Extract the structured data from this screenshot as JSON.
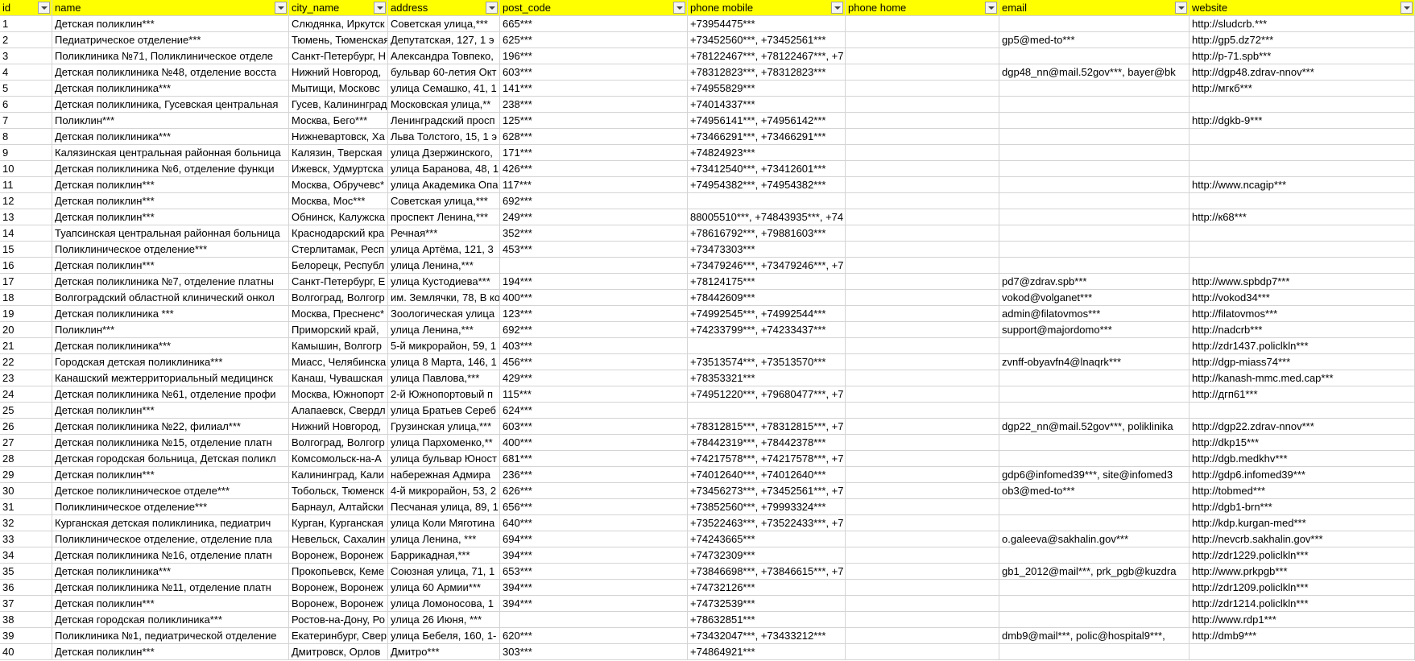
{
  "table": {
    "columns": [
      "id",
      "name",
      "city_name",
      "address",
      "post_code",
      "phone mobile",
      "phone home",
      "email",
      "website"
    ],
    "rows": [
      [
        1,
        "Детская поликлин***",
        "Слюдянка, Иркутск",
        "Советская улица,***",
        "665***",
        "+73954475***",
        null,
        null,
        "http://sludcrb.***"
      ],
      [
        2,
        "Педиатрическое отделение***",
        "Тюмень, Тюменская",
        "Депутатская, 127, 1 э",
        "625***",
        "+73452560***, +73452561***",
        null,
        "gp5@med-to***",
        "http://gp5.dz72***"
      ],
      [
        3,
        "Поликлиника №71, Поликлиническое отделе",
        "Санкт-Петербург, Н",
        "Александра Товпеко,",
        "196***",
        "+78122467***, +78122467***, +7",
        null,
        null,
        "http://p-71.spb***"
      ],
      [
        4,
        "Детская поликлиника №48, отделение восста",
        "Нижний Новгород,",
        "бульвар 60-летия Окт",
        "603***",
        "+78312823***, +78312823***",
        null,
        "dgp48_nn@mail.52gov***, bayer@bk",
        "http://dgp48.zdrav-nnov***"
      ],
      [
        5,
        "Детская поликлиника***",
        "Мытищи, Московс",
        "улица Семашко, 41, 1",
        "141***",
        "+74955829***",
        null,
        null,
        "http://мгкб***"
      ],
      [
        6,
        "Детская поликлиника, Гусевская центральная",
        "Гусев, Калининград",
        "Московская улица,**",
        "238***",
        "+74014337***",
        null,
        null,
        null
      ],
      [
        7,
        "Поликлин***",
        "Москва, Бего***",
        "Ленинградский просп",
        "125***",
        "+74956141***, +74956142***",
        null,
        null,
        "http://dgkb-9***"
      ],
      [
        8,
        "Детская поликлиника***",
        "Нижневартовск, Ха",
        "Льва Толстого, 15, 1 э",
        "628***",
        "+73466291***, +73466291***",
        null,
        null,
        null
      ],
      [
        9,
        "Калязинская центральная районная больница",
        "Калязин, Тверская",
        "улица Дзержинского,",
        "171***",
        "+74824923***",
        null,
        null,
        null
      ],
      [
        10,
        "Детская поликлиника №6, отделение функци",
        "Ижевск, Удмуртска",
        "улица Баранова, 48, 1",
        "426***",
        "+73412540***, +73412601***",
        null,
        null,
        null
      ],
      [
        11,
        "Детская поликлин***",
        "Москва, Обручевс*",
        "улица Академика Опа",
        "117***",
        "+74954382***, +74954382***",
        null,
        null,
        "http://www.ncagip***"
      ],
      [
        12,
        "Детская поликлин***",
        "Москва, Мос***",
        "Советская улица,***",
        "692***",
        null,
        null,
        null,
        null
      ],
      [
        13,
        "Детская поликлин***",
        "Обнинск, Калужска",
        "проспект Ленина,***",
        "249***",
        "88005510***, +74843935***, +74",
        null,
        null,
        "http://к68***"
      ],
      [
        14,
        "Туапсинская центральная районная больница",
        "Краснодарский кра",
        "Речная***",
        "352***",
        "+78616792***, +79881603***",
        null,
        null,
        null
      ],
      [
        15,
        "Поликлиническое отделение***",
        "Стерлитамак, Респ",
        "улица Артёма, 121, 3",
        "453***",
        "+73473303***",
        null,
        null,
        null
      ],
      [
        16,
        "Детская поликлин***",
        "Белорецк, Республ",
        "улица Ленина,***",
        null,
        "+73479246***, +73479246***, +7",
        null,
        null,
        null
      ],
      [
        17,
        "Детская поликлиника №7, отделение платны",
        "Санкт-Петербург, Е",
        "улица Кустодиева***",
        "194***",
        "+78124175***",
        null,
        "pd7@zdrav.spb***",
        "http://www.spbdp7***"
      ],
      [
        18,
        "Волгоградский областной клинический онкол",
        "Волгоград, Волгогр",
        "им. Землячки, 78, В ко",
        "400***",
        "+78442609***",
        null,
        "vokod@volganet***",
        "http://vokod34***"
      ],
      [
        19,
        "Детская поликлиника ***",
        "Москва, Пресненс*",
        "Зоологическая улица",
        "123***",
        "+74992545***, +74992544***",
        null,
        "admin@filatovmos***",
        "http://filatovmos***"
      ],
      [
        20,
        "Поликлин***",
        "Приморский край,",
        "улица Ленина,***",
        "692***",
        "+74233799***, +74233437***",
        null,
        "support@majordomo***",
        "http://nadcrb***"
      ],
      [
        21,
        "Детская поликлиника***",
        "Камышин, Волгогр",
        "5-й микрорайон, 59, 1",
        "403***",
        null,
        null,
        null,
        "http://zdr1437.policlkln***"
      ],
      [
        22,
        "Городская детская поликлиника***",
        "Миасс, Челябинска",
        "улица 8 Марта, 146, 1",
        "456***",
        "+73513574***, +73513570***",
        null,
        "zvnff-obyavfn4@lnaqrk***",
        "http://dgp-miass74***"
      ],
      [
        23,
        "Канашский межтерриториальный медицинск",
        "Канаш, Чувашская",
        "улица Павлова,***",
        "429***",
        "+78353321***",
        null,
        null,
        "http://kanash-mmc.med.cap***"
      ],
      [
        24,
        "Детская поликлиника №61, отделение профи",
        "Москва, Южнопорт",
        "2-й Южнопортовый п",
        "115***",
        "+74951220***, +79680477***, +7",
        null,
        null,
        "http://дгп61***"
      ],
      [
        25,
        "Детская поликлин***",
        "Алапаевск, Свердл",
        "улица Братьев Сереб",
        "624***",
        null,
        null,
        null,
        null
      ],
      [
        26,
        "Детская поликлиника №22, филиал***",
        "Нижний Новгород,",
        "Грузинская улица,***",
        "603***",
        "+78312815***, +78312815***, +7",
        null,
        "dgp22_nn@mail.52gov***, poliklinika",
        "http://dgp22.zdrav-nnov***"
      ],
      [
        27,
        "Детская поликлиника №15, отделение платн",
        "Волгоград, Волгогр",
        "улица Пархоменко,**",
        "400***",
        "+78442319***, +78442378***",
        null,
        null,
        "http://dkp15***"
      ],
      [
        28,
        "Детская городская больница, Детская поликл",
        "Комсомольск-на-А",
        "улица бульвар Юност",
        "681***",
        "+74217578***, +74217578***, +7",
        null,
        null,
        "http://dgb.medkhv***"
      ],
      [
        29,
        "Детская поликлин***",
        "Калининград, Кали",
        "набережная Адмира",
        "236***",
        "+74012640***, +74012640***",
        null,
        "gdp6@infomed39***, site@infomed3",
        "http://gdp6.infomed39***"
      ],
      [
        30,
        "Детское поликлиническое отделе***",
        "Тобольск, Тюменск",
        "4-й микрорайон, 53, 2",
        "626***",
        "+73456273***, +73452561***, +7",
        null,
        "ob3@med-to***",
        "http://tobmed***"
      ],
      [
        31,
        "Поликлиническое отделение***",
        "Барнаул, Алтайски",
        "Песчаная улица, 89, 1",
        "656***",
        "+73852560***, +79993324***",
        null,
        null,
        "http://dgb1-brn***"
      ],
      [
        32,
        "Курганская детская поликлиника, педиатрич",
        "Курган, Курганская",
        "улица Коли Мяготина",
        "640***",
        "+73522463***, +73522433***, +7",
        null,
        null,
        "http://kdp.kurgan-med***"
      ],
      [
        33,
        "Поликлиническое отделение, отделение пла",
        "Невельск, Сахалин",
        "улица Ленина, ***",
        "694***",
        "+74243665***",
        null,
        "o.galeeva@sakhalin.gov***",
        "http://nevcrb.sakhalin.gov***"
      ],
      [
        34,
        "Детская поликлиника №16, отделение платн",
        "Воронеж, Воронеж",
        "Баррикадная,***",
        "394***",
        "+74732309***",
        null,
        null,
        "http://zdr1229.policlkln***"
      ],
      [
        35,
        "Детская поликлиника***",
        "Прокопьевск, Кеме",
        "Союзная улица, 71, 1",
        "653***",
        "+73846698***, +73846615***, +7",
        null,
        "gb1_2012@mail***, prk_pgb@kuzdra",
        "http://www.prkpgb***"
      ],
      [
        36,
        "Детская поликлиника №11, отделение платн",
        "Воронеж, Воронеж",
        "улица 60 Армии***",
        "394***",
        "+74732126***",
        null,
        null,
        "http://zdr1209.policlkln***"
      ],
      [
        37,
        "Детская поликлин***",
        "Воронеж, Воронеж",
        "улица Ломоносова, 1",
        "394***",
        "+74732539***",
        null,
        null,
        "http://zdr1214.policlkln***"
      ],
      [
        38,
        "Детская городская поликлиника***",
        "Ростов-на-Дону, Ро",
        "улица 26 Июня, ***",
        null,
        "+78632851***",
        null,
        null,
        "http://www.rdp1***"
      ],
      [
        39,
        "Поликлиника №1, педиатрической отделение",
        "Екатеринбург, Свер",
        "улица Бебеля, 160, 1-",
        "620***",
        "+73432047***, +73433212***",
        null,
        "dmb9@mail***, polic@hospital9***,",
        "http://dmb9***"
      ],
      [
        40,
        "Детская поликлин***",
        "Дмитровск, Орлов",
        "Дмитро***",
        "303***",
        "+74864921***",
        null,
        null,
        null
      ]
    ]
  }
}
